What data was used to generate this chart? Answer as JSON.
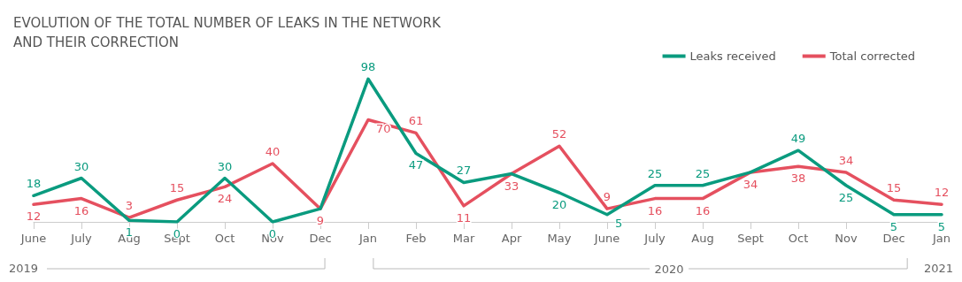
{
  "chart_data": {
    "type": "line",
    "title": "EVOLUTION OF THE TOTAL NUMBER OF LEAKS IN THE NETWORK\nAND THEIR CORRECTION",
    "categories": [
      "June",
      "July",
      "Aug",
      "Sept",
      "Oct",
      "Nov",
      "Dec",
      "Jan",
      "Feb",
      "Mar",
      "Apr",
      "May",
      "June",
      "July",
      "Aug",
      "Sept",
      "Oct",
      "Nov",
      "Dec",
      "Jan"
    ],
    "series": [
      {
        "name": "Leaks received",
        "color": "#0a9b7f",
        "values": [
          18,
          30,
          1,
          0,
          30,
          0,
          9,
          98,
          47,
          27,
          33,
          20,
          5,
          25,
          25,
          34,
          49,
          25,
          5,
          5
        ],
        "value_labels": [
          "18",
          "30",
          "1",
          "0",
          "30",
          "0",
          null,
          "98",
          "47",
          "27",
          null,
          "20",
          "5",
          "25",
          "25",
          null,
          "49",
          "25",
          "5",
          "5"
        ]
      },
      {
        "name": "Total corrected",
        "color": "#e5505f",
        "values": [
          12,
          16,
          3,
          15,
          24,
          40,
          9,
          70,
          61,
          11,
          33,
          52,
          9,
          16,
          16,
          34,
          38,
          34,
          15,
          12
        ],
        "value_labels": [
          "12",
          "16",
          "3",
          "15",
          "24",
          "40",
          "9",
          "70",
          "61",
          "11",
          "33",
          "52",
          "9",
          "16",
          "16",
          "34",
          "38",
          "34",
          "15",
          "12"
        ]
      }
    ],
    "legend": "top right",
    "marker": "none",
    "line_style": "solid",
    "grid": false,
    "annotations": [
      "2019",
      "2020",
      "2021"
    ]
  }
}
